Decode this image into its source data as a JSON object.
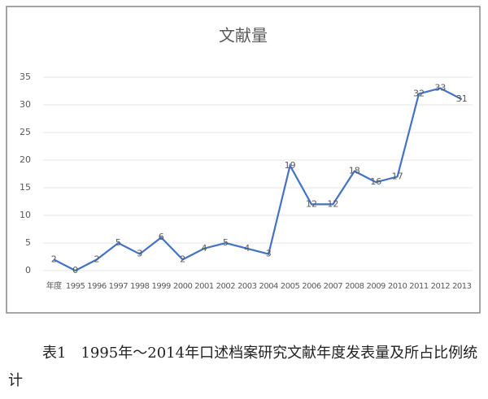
{
  "chart_data": {
    "type": "line",
    "title": "文献量",
    "categories": [
      "年度",
      "1995",
      "1996",
      "1997",
      "1998",
      "1999",
      "2000",
      "2001",
      "2002",
      "2003",
      "2004",
      "2005",
      "2006",
      "2007",
      "2008",
      "2009",
      "2010",
      "2011",
      "2012",
      "2013"
    ],
    "values": [
      2,
      0,
      2,
      5,
      3,
      6,
      2,
      4,
      5,
      4,
      3,
      19,
      12,
      12,
      18,
      16,
      17,
      32,
      33,
      31
    ],
    "color": "#4472c4",
    "ylim": [
      0,
      35
    ],
    "yticks": [
      0,
      5,
      10,
      15,
      20,
      25,
      30,
      35
    ],
    "grid": true
  },
  "caption": "表1　1995年～2014年口述档案研究文献年度发表量及所占比例统计"
}
